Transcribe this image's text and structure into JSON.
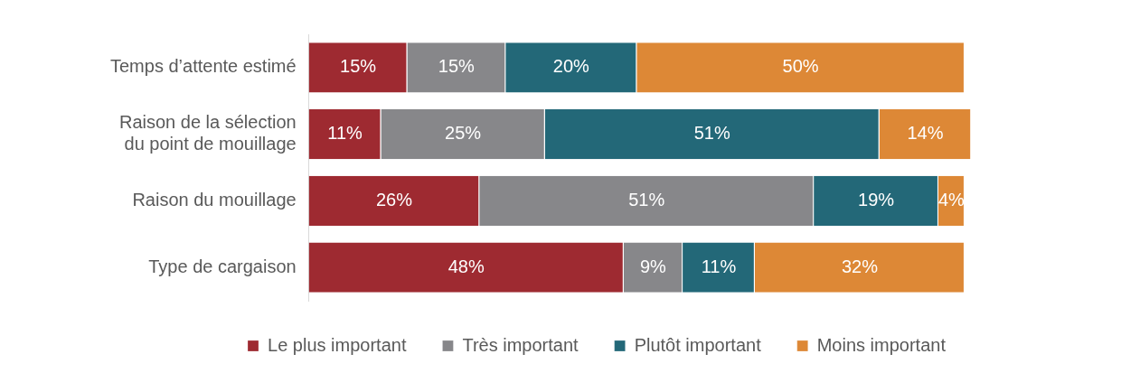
{
  "chart_data": {
    "type": "bar",
    "orientation": "horizontal",
    "stacked": true,
    "legend": "bottom",
    "categories": [
      "Temps d’attente estimé",
      "Raison de la sélection du point de mouillage",
      "Raison du mouillage",
      "Type de cargaison"
    ],
    "series": [
      {
        "name": "Le plus important",
        "color": "#9e2a31",
        "values": [
          15,
          11,
          26,
          48
        ],
        "value_labels": [
          "15%",
          "11%",
          "26%",
          "48%"
        ]
      },
      {
        "name": "Très important",
        "color": "#87878a",
        "values": [
          15,
          25,
          51,
          9
        ],
        "value_labels": [
          "15%",
          "25%",
          "51%",
          "9%"
        ]
      },
      {
        "name": "Plutôt important",
        "color": "#236878",
        "values": [
          20,
          51,
          19,
          11
        ],
        "value_labels": [
          "20%",
          "51%",
          "19%",
          "11%"
        ]
      },
      {
        "name": "Moins important",
        "color": "#dd8836",
        "values": [
          50,
          14,
          4,
          32
        ],
        "value_labels": [
          "50%",
          "14%",
          "4%",
          "32%"
        ]
      }
    ]
  }
}
